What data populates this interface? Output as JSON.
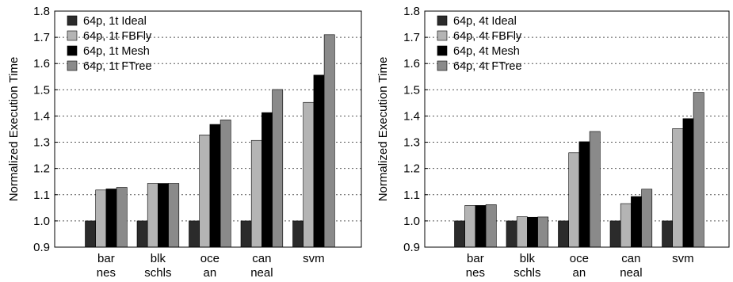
{
  "chart_data": [
    {
      "type": "bar",
      "title": "",
      "xlabel": "",
      "ylabel": "Normalized Execution Time",
      "ylim": [
        0.9,
        1.8
      ],
      "yticks": [
        "0.9",
        "1.0",
        "1.1",
        "1.2",
        "1.3",
        "1.4",
        "1.5",
        "1.6",
        "1.7",
        "1.8"
      ],
      "grid": "horizontal dotted",
      "legend_position": "top-left",
      "categories": [
        [
          "bar",
          "nes"
        ],
        [
          "blk",
          "schls"
        ],
        [
          "oce",
          "an"
        ],
        [
          "can",
          "neal"
        ],
        [
          "svm"
        ]
      ],
      "series": [
        {
          "name": "64p, 1t Ideal",
          "color": "#2b2b2b",
          "values": [
            1.0,
            1.0,
            1.0,
            1.0,
            1.0
          ]
        },
        {
          "name": "64p, 1t FBFly",
          "color": "#b4b4b4",
          "values": [
            1.118,
            1.143,
            1.328,
            1.307,
            1.452
          ]
        },
        {
          "name": "64p, 1t Mesh",
          "color": "#000000",
          "values": [
            1.122,
            1.143,
            1.368,
            1.413,
            1.556
          ]
        },
        {
          "name": "64p, 1t FTree",
          "color": "#8a8a8a",
          "values": [
            1.128,
            1.143,
            1.385,
            1.501,
            1.71
          ]
        }
      ]
    },
    {
      "type": "bar",
      "title": "",
      "xlabel": "",
      "ylabel": "Normalized Execution Time",
      "ylim": [
        0.9,
        1.8
      ],
      "yticks": [
        "0.9",
        "1.0",
        "1.1",
        "1.2",
        "1.3",
        "1.4",
        "1.5",
        "1.6",
        "1.7",
        "1.8"
      ],
      "grid": "horizontal dotted",
      "legend_position": "top-left",
      "categories": [
        [
          "bar",
          "nes"
        ],
        [
          "blk",
          "schls"
        ],
        [
          "oce",
          "an"
        ],
        [
          "can",
          "neal"
        ],
        [
          "svm"
        ]
      ],
      "series": [
        {
          "name": "64p, 4t Ideal",
          "color": "#2b2b2b",
          "values": [
            1.0,
            1.0,
            1.0,
            1.0,
            1.0
          ]
        },
        {
          "name": "64p, 4t FBFly",
          "color": "#b4b4b4",
          "values": [
            1.059,
            1.016,
            1.26,
            1.066,
            1.352
          ]
        },
        {
          "name": "64p, 4t Mesh",
          "color": "#000000",
          "values": [
            1.059,
            1.014,
            1.302,
            1.093,
            1.39
          ]
        },
        {
          "name": "64p, 4t FTree",
          "color": "#8a8a8a",
          "values": [
            1.062,
            1.015,
            1.341,
            1.121,
            1.49
          ]
        }
      ]
    }
  ]
}
